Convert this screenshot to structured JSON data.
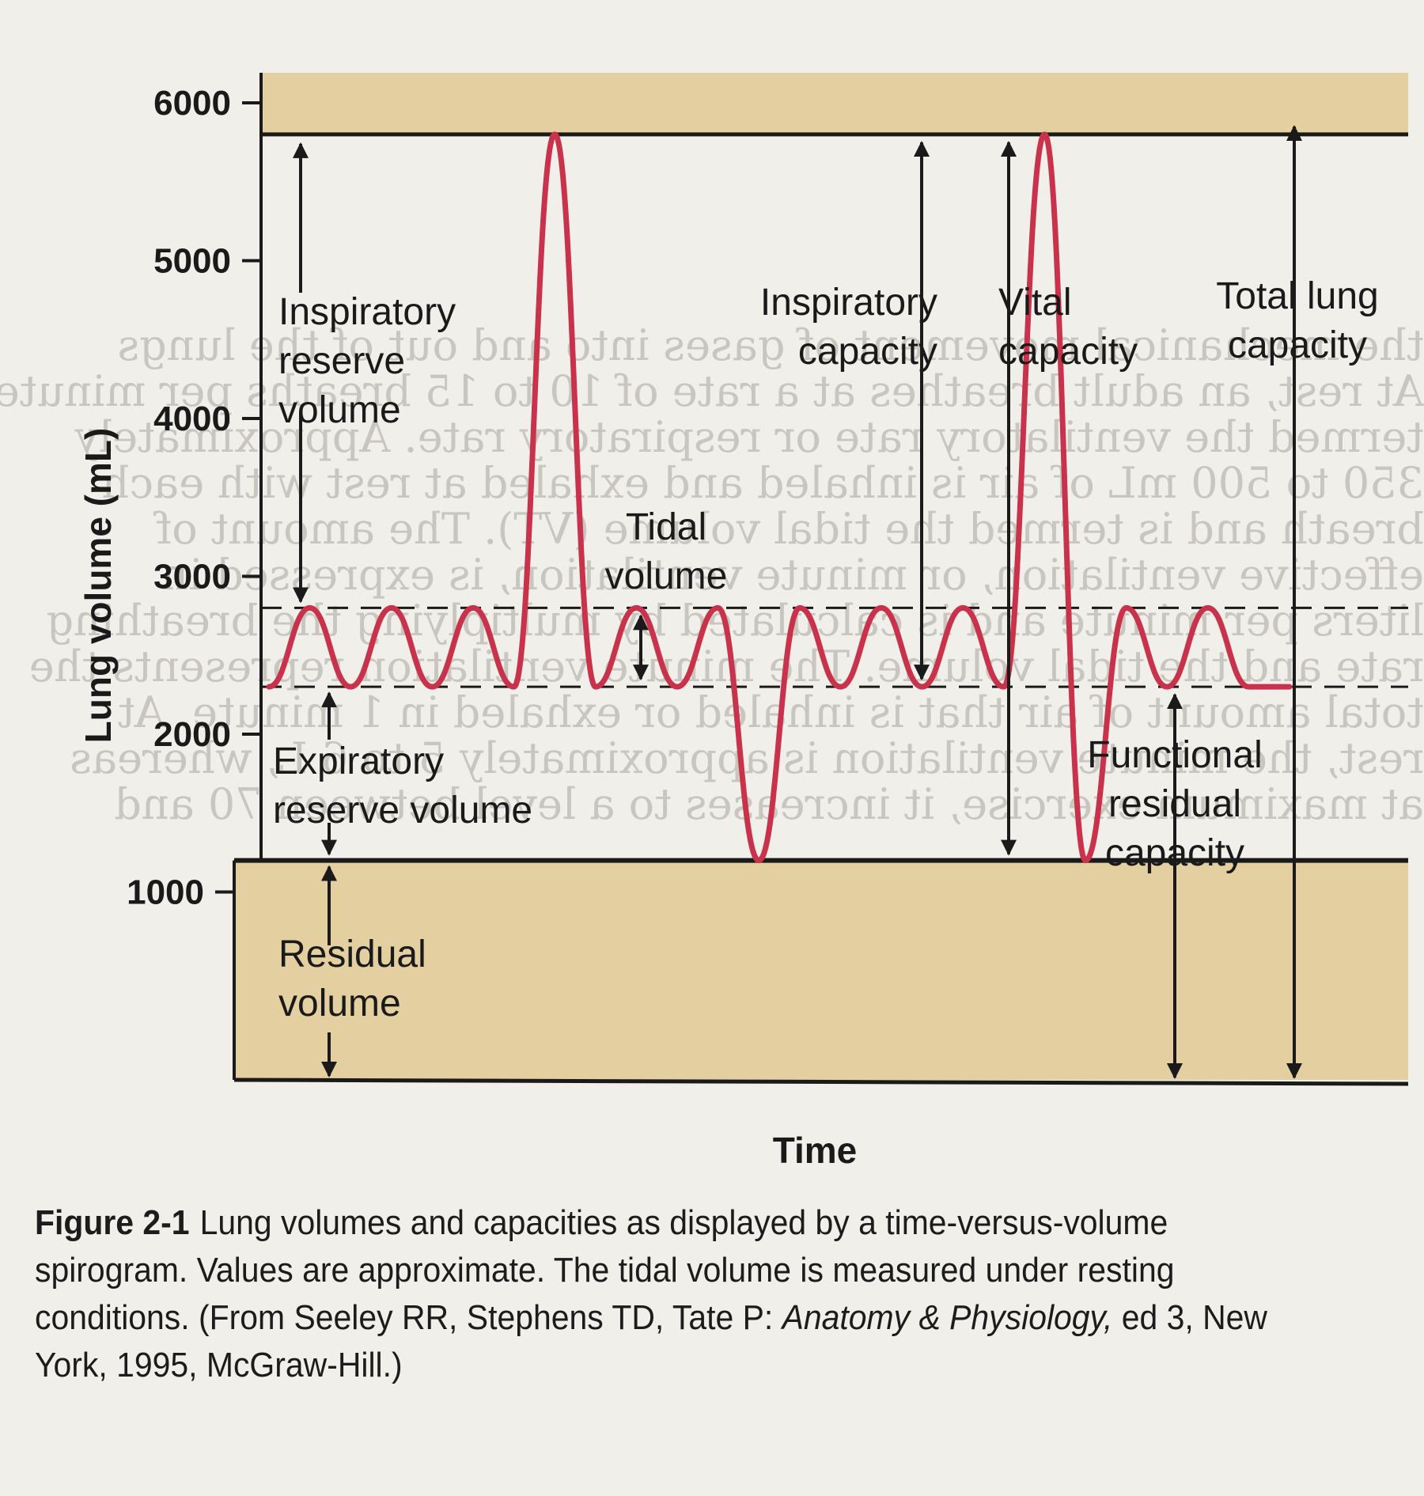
{
  "chart_data": {
    "type": "line",
    "title": "",
    "xlabel": "Time",
    "ylabel": "Lung volume (mL)",
    "ylim": [
      0,
      6000
    ],
    "yticks": [
      1000,
      2000,
      3000,
      4000,
      5000,
      6000
    ],
    "ytick_labels": [
      "1000",
      "2000",
      "3000",
      "4000",
      "5000",
      "6000"
    ],
    "grid": false,
    "legend": "none",
    "reference_levels": {
      "total_lung_capacity": 5800,
      "tidal_inspiration": 2800,
      "tidal_expiration": 2300,
      "residual_volume": 1200
    },
    "series": [
      {
        "x": [
          0,
          1,
          2,
          3,
          4,
          5,
          6,
          7,
          8,
          9,
          10,
          11,
          12,
          13,
          14,
          15,
          16,
          17,
          18,
          19,
          20,
          21,
          22,
          23,
          24,
          25
        ],
        "y": [
          2300,
          2800,
          2300,
          2800,
          2300,
          2800,
          2300,
          5800,
          2300,
          2800,
          2300,
          2800,
          1200,
          2800,
          2300,
          2800,
          2300,
          2800,
          2300,
          5800,
          1200,
          2800,
          2300,
          2800,
          2300,
          2300
        ]
      }
    ],
    "annotations": {
      "irv": [
        "Inspiratory",
        "reserve",
        "volume"
      ],
      "tidal": [
        "Tidal",
        "volume"
      ],
      "erv": [
        "Expiratory",
        "reserve volume"
      ],
      "rv": [
        "Residual",
        "volume"
      ],
      "ic": [
        "Inspiratory",
        "capacity"
      ],
      "vc": [
        "Vital",
        "capacity"
      ],
      "tlc": [
        "Total lung",
        "capacity"
      ],
      "frc": [
        "Functional",
        "residual",
        "capacity"
      ]
    },
    "colors": {
      "trace": "#c8324a",
      "band": "#e3cf9f",
      "line": "#1a1a1a"
    }
  },
  "caption": {
    "figure_label": "Figure 2-1",
    "text_part1": "Lung volumes and capacities as displayed by a time-versus-volume spirogram. Values are approximate. The tidal volume is measured under resting conditions. (From Seeley RR, Stephens TD, Tate P: ",
    "text_italic": "Anatomy & Physiology,",
    "text_part2": " ed 3, New York, 1995, McGraw-Hill.)"
  }
}
